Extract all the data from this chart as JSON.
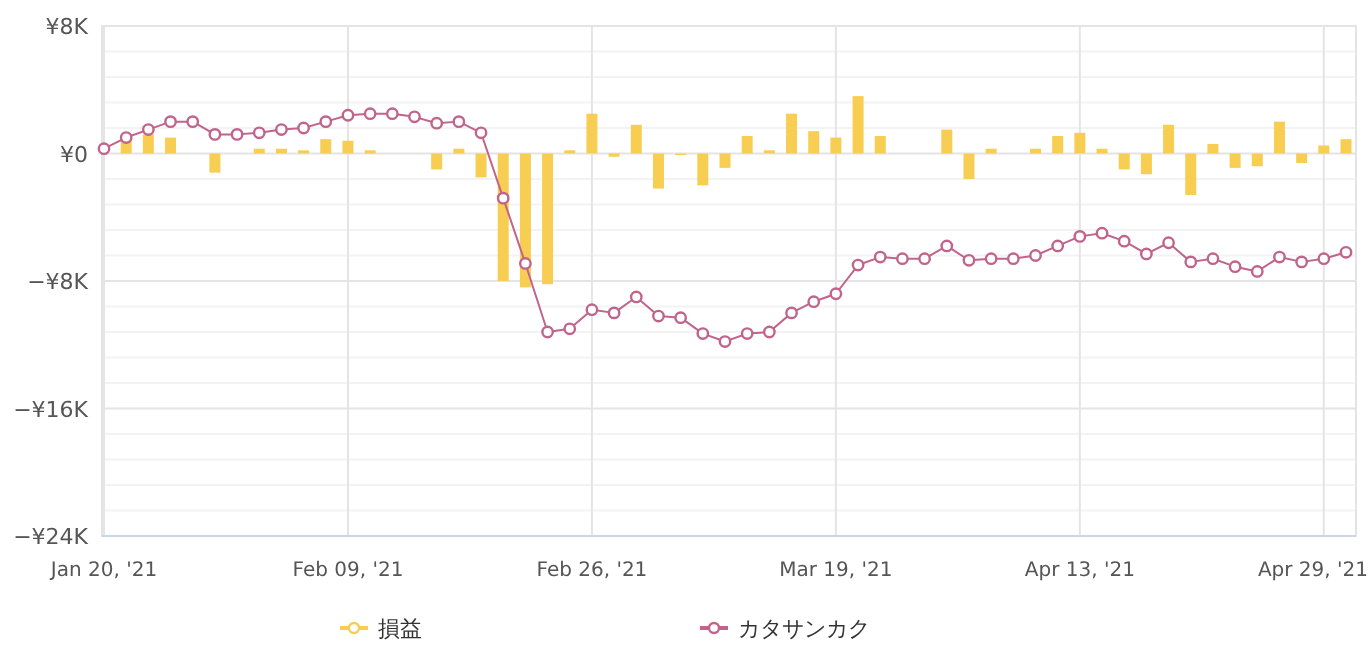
{
  "chart_data": {
    "type": "bar",
    "categories": [
      "Jan 20, '21",
      null,
      null,
      null,
      null,
      null,
      null,
      null,
      null,
      null,
      null,
      "Feb 09, '21",
      null,
      null,
      null,
      null,
      null,
      null,
      null,
      null,
      null,
      null,
      "Feb 26, '21",
      null,
      null,
      null,
      null,
      null,
      null,
      null,
      null,
      null,
      null,
      "Mar 19, '21",
      null,
      null,
      null,
      null,
      null,
      null,
      null,
      null,
      null,
      null,
      "Apr 13, '21",
      null,
      null,
      null,
      null,
      null,
      null,
      null,
      null,
      null,
      null,
      "Apr 29, '21",
      null
    ],
    "series": [
      {
        "name": "損益",
        "color": "#f7cd52",
        "values": [
          null,
          0.9,
          1.2,
          1.0,
          null,
          -1.2,
          null,
          0.3,
          0.3,
          0.2,
          0.9,
          0.8,
          0.2,
          null,
          null,
          -1.0,
          0.3,
          -1.5,
          -8.0,
          -8.4,
          -8.2,
          0.2,
          2.5,
          -0.2,
          1.8,
          -2.2,
          -0.1,
          -2.0,
          -0.9,
          1.1,
          0.2,
          2.5,
          1.4,
          1.0,
          3.6,
          1.1,
          null,
          null,
          1.5,
          -1.6,
          0.3,
          null,
          0.3,
          1.1,
          1.3,
          0.3,
          -1.0,
          -1.3,
          1.8,
          -2.6,
          0.6,
          -0.9,
          -0.8,
          2.0,
          -0.6,
          0.5,
          0.9
        ]
      },
      {
        "name": "カタサンカク",
        "type": "line",
        "color": "#c0648c",
        "values": [
          0.3,
          1.0,
          1.5,
          2.0,
          2.0,
          1.2,
          1.2,
          1.3,
          1.5,
          1.6,
          2.0,
          2.4,
          2.5,
          2.5,
          2.3,
          1.9,
          2.0,
          1.3,
          -2.8,
          -6.9,
          -11.2,
          -11.0,
          -9.8,
          -10.0,
          -9.0,
          -10.2,
          -10.3,
          -11.3,
          -11.8,
          -11.3,
          -11.2,
          -10.0,
          -9.3,
          -8.8,
          -7.0,
          -6.5,
          -6.6,
          -6.6,
          -5.8,
          -6.7,
          -6.6,
          -6.6,
          -6.4,
          -5.8,
          -5.2,
          -5.0,
          -5.5,
          -6.3,
          -5.6,
          -6.8,
          -6.6,
          -7.1,
          -7.4,
          -6.5,
          -6.8,
          -6.6,
          -6.2
        ]
      }
    ],
    "ylim": [
      -24,
      8
    ],
    "yticks": [
      {
        "value": 8,
        "label": "¥8K"
      },
      {
        "value": 6.4,
        "label": null
      },
      {
        "value": 4.8,
        "label": null
      },
      {
        "value": 3.2,
        "label": null
      },
      {
        "value": 1.6,
        "label": null
      },
      {
        "value": 0,
        "label": "¥0"
      },
      {
        "value": -1.6,
        "label": null
      },
      {
        "value": -3.2,
        "label": null
      },
      {
        "value": -4.8,
        "label": null
      },
      {
        "value": -6.4,
        "label": null
      },
      {
        "value": -8,
        "label": "−¥8K"
      },
      {
        "value": -9.6,
        "label": null
      },
      {
        "value": -11.2,
        "label": null
      },
      {
        "value": -12.8,
        "label": null
      },
      {
        "value": -14.4,
        "label": null
      },
      {
        "value": -16,
        "label": "−¥16K"
      },
      {
        "value": -17.6,
        "label": null
      },
      {
        "value": -19.2,
        "label": null
      },
      {
        "value": -20.8,
        "label": null
      },
      {
        "value": -22.4,
        "label": null
      },
      {
        "value": -24,
        "label": "−¥24K"
      }
    ],
    "grid": true,
    "legend": "bottom",
    "marker": "circle"
  }
}
